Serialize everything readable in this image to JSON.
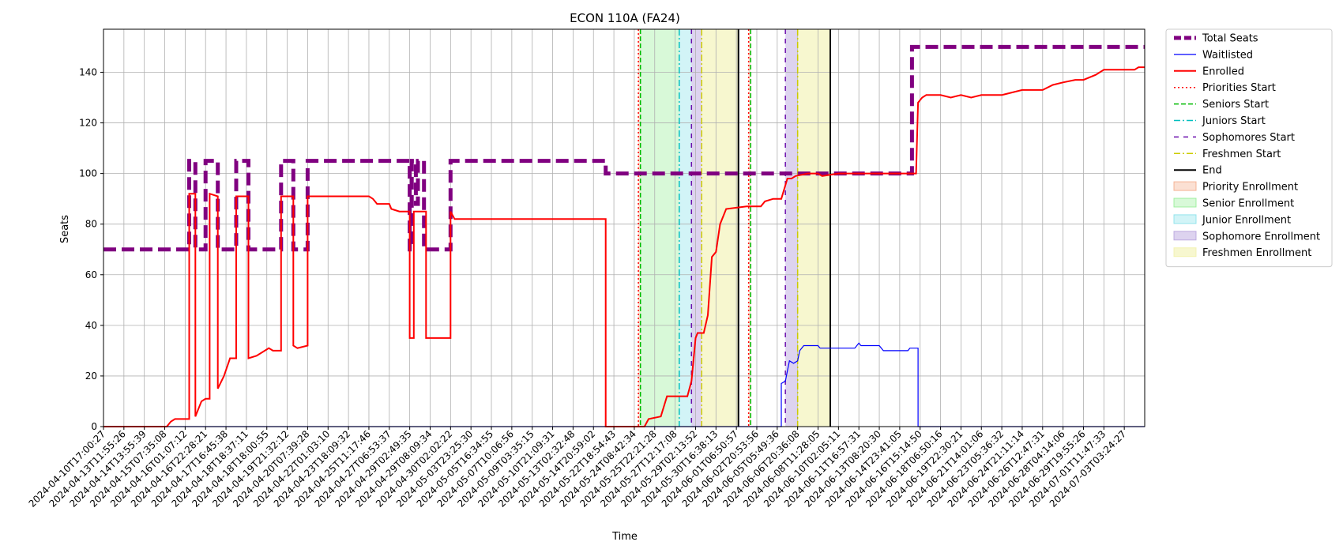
{
  "chart_data": {
    "type": "line",
    "title": "ECON 110A (FA24)",
    "xlabel": "Time",
    "ylabel": "Seats",
    "ylim": [
      0,
      157
    ],
    "xlim": [
      0,
      51
    ],
    "grid": true,
    "legend_position": "outside-top-right",
    "x_tick_labels": [
      "2024-04-10T17:00:27",
      "2024-04-13T11:55:26",
      "2024-04-14T13:55:39",
      "2024-04-15T07:35:08",
      "2024-04-16T01:07:12",
      "2024-04-16T22:28:21",
      "2024-04-17T16:45:38",
      "2024-04-18T18:37:11",
      "2024-04-18T18:00:55",
      "2024-04-19T21:32:12",
      "2024-04-20T07:39:28",
      "2024-04-22T01:03:10",
      "2024-04-23T18:09:32",
      "2024-04-25T11:17:46",
      "2024-04-27T06:53:37",
      "2024-04-29T02:49:35",
      "2024-04-29T08:09:34",
      "2024-04-30T02:02:22",
      "2024-05-03T23:25:30",
      "2024-05-05T16:34:55",
      "2024-05-07T10:06:56",
      "2024-05-09T03:35:15",
      "2024-05-10T21:09:31",
      "2024-05-13T02:32:48",
      "2024-05-14T20:59:02",
      "2024-05-22T18:54:43",
      "2024-05-24T08:42:34",
      "2024-05-25T22:21:28",
      "2024-05-27T12:17:08",
      "2024-05-29T02:13:52",
      "2024-05-30T16:38:13",
      "2024-06-01T06:50:57",
      "2024-06-02T20:53:56",
      "2024-06-05T05:49:36",
      "2024-06-06T20:36:08",
      "2024-06-08T11:28:05",
      "2024-06-10T02:05:11",
      "2024-06-11T16:57:31",
      "2024-06-13T08:20:30",
      "2024-06-14T23:41:05",
      "2024-06-16T15:14:50",
      "2024-06-18T06:50:16",
      "2024-06-19T22:30:21",
      "2024-06-21T14:01:06",
      "2024-06-23T05:36:32",
      "2024-06-24T21:11:14",
      "2024-06-26T12:47:31",
      "2024-06-28T04:14:06",
      "2024-06-29T19:55:26",
      "2024-07-01T11:47:33",
      "2024-07-03T03:24:27"
    ],
    "y_ticks": [
      0,
      20,
      40,
      60,
      80,
      100,
      120,
      140
    ],
    "series": [
      {
        "name": "Total Seats",
        "color": "#800080",
        "style": "dashed-thick",
        "points": [
          [
            0,
            70
          ],
          [
            4.2,
            70
          ],
          [
            4.2,
            105
          ],
          [
            4.5,
            105
          ],
          [
            4.5,
            70
          ],
          [
            5,
            70
          ],
          [
            5,
            105
          ],
          [
            5.6,
            105
          ],
          [
            5.6,
            70
          ],
          [
            6.5,
            70
          ],
          [
            6.5,
            105
          ],
          [
            7.1,
            105
          ],
          [
            7.1,
            70
          ],
          [
            8.7,
            70
          ],
          [
            8.7,
            105
          ],
          [
            9.3,
            105
          ],
          [
            9.3,
            70
          ],
          [
            10,
            70
          ],
          [
            10,
            105
          ],
          [
            15,
            105
          ],
          [
            15,
            70
          ],
          [
            15.1,
            70
          ],
          [
            15.1,
            105
          ],
          [
            15.3,
            105
          ],
          [
            15.3,
            88
          ],
          [
            15.4,
            88
          ],
          [
            15.4,
            105
          ],
          [
            15.7,
            105
          ],
          [
            15.7,
            70
          ],
          [
            17,
            70
          ],
          [
            17,
            105
          ],
          [
            24.6,
            105
          ],
          [
            24.6,
            100
          ],
          [
            39.6,
            100
          ],
          [
            39.6,
            150
          ],
          [
            51,
            150
          ]
        ]
      },
      {
        "name": "Waitlisted",
        "color": "#0000ff",
        "style": "solid-thin",
        "points": [
          [
            0,
            0
          ],
          [
            33.2,
            0
          ],
          [
            33.2,
            17
          ],
          [
            33.4,
            18
          ],
          [
            33.5,
            22
          ],
          [
            33.6,
            26
          ],
          [
            33.8,
            25
          ],
          [
            34,
            26
          ],
          [
            34.1,
            30
          ],
          [
            34.3,
            32
          ],
          [
            34.5,
            32
          ],
          [
            35,
            32
          ],
          [
            35.1,
            31
          ],
          [
            36,
            31
          ],
          [
            36.8,
            31
          ],
          [
            36.9,
            32
          ],
          [
            37,
            33
          ],
          [
            37.1,
            32
          ],
          [
            38,
            32
          ],
          [
            38.2,
            30
          ],
          [
            39,
            30
          ],
          [
            39.4,
            30
          ],
          [
            39.5,
            31
          ],
          [
            39.9,
            31
          ],
          [
            39.9,
            0
          ],
          [
            51,
            0
          ]
        ]
      },
      {
        "name": "Enrolled",
        "color": "#ff0000",
        "style": "solid",
        "points": [
          [
            0,
            0
          ],
          [
            3.1,
            0
          ],
          [
            3.3,
            2
          ],
          [
            3.5,
            3
          ],
          [
            4.2,
            3
          ],
          [
            4.2,
            92
          ],
          [
            4.5,
            92
          ],
          [
            4.5,
            4
          ],
          [
            4.8,
            10
          ],
          [
            5,
            11
          ],
          [
            5.2,
            11
          ],
          [
            5.2,
            92
          ],
          [
            5.6,
            91
          ],
          [
            5.6,
            15
          ],
          [
            5.9,
            20
          ],
          [
            6.2,
            27
          ],
          [
            6.5,
            27
          ],
          [
            6.5,
            91
          ],
          [
            7.1,
            91
          ],
          [
            7.1,
            27
          ],
          [
            7.5,
            28
          ],
          [
            7.9,
            30
          ],
          [
            8.1,
            31
          ],
          [
            8.3,
            30
          ],
          [
            8.7,
            30
          ],
          [
            8.7,
            91
          ],
          [
            9.3,
            91
          ],
          [
            9.3,
            32
          ],
          [
            9.5,
            31
          ],
          [
            10,
            32
          ],
          [
            10,
            91
          ],
          [
            13,
            91
          ],
          [
            13.2,
            90
          ],
          [
            13.4,
            88
          ],
          [
            14,
            88
          ],
          [
            14.1,
            86
          ],
          [
            14.5,
            85
          ],
          [
            15,
            85
          ],
          [
            15,
            35
          ],
          [
            15.2,
            35
          ],
          [
            15.2,
            85
          ],
          [
            15.8,
            85
          ],
          [
            15.8,
            35
          ],
          [
            17,
            35
          ],
          [
            17,
            85
          ],
          [
            17.2,
            82
          ],
          [
            24.6,
            82
          ],
          [
            24.6,
            0
          ],
          [
            26.5,
            0
          ],
          [
            26.7,
            3
          ],
          [
            27.3,
            4
          ],
          [
            27.6,
            12
          ],
          [
            28.6,
            12
          ],
          [
            28.8,
            18
          ],
          [
            29,
            35
          ],
          [
            29.1,
            37
          ],
          [
            29.4,
            37
          ],
          [
            29.6,
            44
          ],
          [
            29.8,
            67
          ],
          [
            30,
            69
          ],
          [
            30.2,
            80
          ],
          [
            30.5,
            86
          ],
          [
            31.5,
            87
          ],
          [
            32.2,
            87
          ],
          [
            32.4,
            89
          ],
          [
            32.8,
            90
          ],
          [
            33.2,
            90
          ],
          [
            33.5,
            98
          ],
          [
            33.7,
            98
          ],
          [
            33.9,
            99
          ],
          [
            34.5,
            100
          ],
          [
            35,
            100
          ],
          [
            35.2,
            99
          ],
          [
            36,
            100
          ],
          [
            39.6,
            100
          ],
          [
            39.8,
            100
          ],
          [
            39.9,
            128
          ],
          [
            40.1,
            130
          ],
          [
            40.3,
            131
          ],
          [
            41,
            131
          ],
          [
            41.5,
            130
          ],
          [
            42,
            131
          ],
          [
            42.5,
            130
          ],
          [
            43,
            131
          ],
          [
            44,
            131
          ],
          [
            45,
            133
          ],
          [
            46,
            133
          ],
          [
            46.5,
            135
          ],
          [
            47,
            136
          ],
          [
            47.6,
            137
          ],
          [
            48,
            137
          ],
          [
            48.6,
            139
          ],
          [
            49,
            141
          ],
          [
            50,
            141
          ],
          [
            50.5,
            141
          ],
          [
            50.7,
            142
          ],
          [
            51,
            142
          ]
        ]
      }
    ],
    "markers": [
      {
        "name": "Priorities Start",
        "color": "#ff0000",
        "style": "dotted",
        "x": [
          26.2,
          31.6
        ]
      },
      {
        "name": "Seniors Start",
        "color": "#00bb00",
        "style": "dashed",
        "x": [
          26.3,
          31.7
        ]
      },
      {
        "name": "Juniors Start",
        "color": "#00bfbf",
        "style": "dashdot",
        "x": [
          28.2
        ]
      },
      {
        "name": "Sophomores Start",
        "color": "#6a0dad",
        "style": "loosedash",
        "x": [
          28.8,
          33.4
        ]
      },
      {
        "name": "Freshmen Start",
        "color": "#cccc00",
        "style": "dashdot",
        "x": [
          29.3,
          34
        ]
      },
      {
        "name": "End",
        "color": "#000000",
        "style": "solid",
        "x": [
          31.1,
          35.6
        ]
      }
    ],
    "bands": [
      {
        "name": "Priority Enrollment",
        "color": "#f4a582",
        "opacity": 0.35,
        "ranges": [
          [
            26.2,
            26.3
          ],
          [
            31.6,
            31.7
          ]
        ]
      },
      {
        "name": "Senior Enrollment",
        "color": "#90ee90",
        "opacity": 0.35,
        "ranges": [
          [
            26.3,
            28.2
          ]
        ]
      },
      {
        "name": "Junior Enrollment",
        "color": "#7fdfe8",
        "opacity": 0.35,
        "ranges": [
          [
            28.2,
            28.8
          ]
        ]
      },
      {
        "name": "Sophomore Enrollment",
        "color": "#b39ddb",
        "opacity": 0.45,
        "ranges": [
          [
            28.8,
            29.3
          ],
          [
            33.4,
            34
          ]
        ]
      },
      {
        "name": "Freshmen Enrollment",
        "color": "#f0f0a8",
        "opacity": 0.55,
        "ranges": [
          [
            29.3,
            31.1
          ],
          [
            34,
            35.6
          ]
        ]
      }
    ]
  }
}
